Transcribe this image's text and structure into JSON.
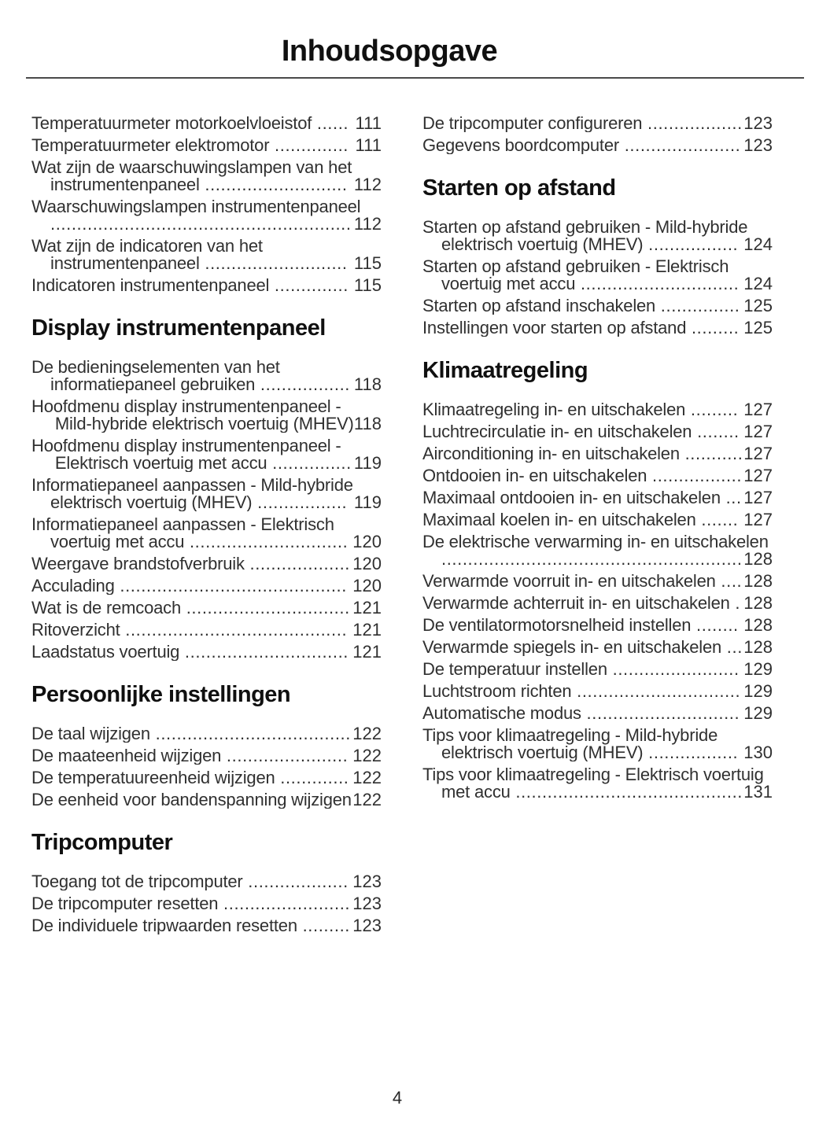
{
  "page": {
    "title": "Inhoudsopgave",
    "page_number": "4"
  },
  "colors": {
    "text": "#303030",
    "heading": "#101010",
    "divider": "#4a4a4a",
    "background": "#ffffff"
  },
  "toc": {
    "left_column": [
      {
        "type": "entry",
        "text": "Temperatuurmeter motorkoelvloeistof",
        "page": "111"
      },
      {
        "type": "entry",
        "text": "Temperatuurmeter elektromotor",
        "page": "111"
      },
      {
        "type": "entry",
        "text": "Wat zijn de waarschuwingslampen van het instrumentenpaneel",
        "page": "112"
      },
      {
        "type": "entry",
        "text": "Waarschuwingslampen instrumentenpaneel",
        "page": "112"
      },
      {
        "type": "entry",
        "text": "Wat zijn de indicatoren van het instrumentenpaneel",
        "page": "115"
      },
      {
        "type": "entry",
        "text": "Indicatoren instrumentenpaneel",
        "page": "115"
      },
      {
        "type": "header",
        "text": "Display instrumentenpaneel"
      },
      {
        "type": "entry",
        "text": "De bedieningselementen van het informatiepaneel gebruiken",
        "page": "118"
      },
      {
        "type": "entry",
        "text": "Hoofdmenu display instrumentenpaneel - Mild-hybride elektrisch voertuig (MHEV)",
        "page": "118"
      },
      {
        "type": "entry",
        "text": "Hoofdmenu display instrumentenpaneel - Elektrisch voertuig met accu",
        "page": "119"
      },
      {
        "type": "entry",
        "text": "Informatiepaneel aanpassen - Mild-hybride elektrisch voertuig (MHEV)",
        "page": "119"
      },
      {
        "type": "entry",
        "text": "Informatiepaneel aanpassen - Elektrisch voertuig met accu",
        "page": "120"
      },
      {
        "type": "entry",
        "text": "Weergave brandstofverbruik",
        "page": "120"
      },
      {
        "type": "entry",
        "text": "Acculading",
        "page": "120"
      },
      {
        "type": "entry",
        "text": "Wat is de remcoach",
        "page": "121"
      },
      {
        "type": "entry",
        "text": "Ritoverzicht",
        "page": "121"
      },
      {
        "type": "entry",
        "text": "Laadstatus voertuig",
        "page": "121"
      },
      {
        "type": "header",
        "text": "Persoonlijke instellingen"
      },
      {
        "type": "entry",
        "text": "De taal wijzigen",
        "page": "122"
      },
      {
        "type": "entry",
        "text": "De maateenheid wijzigen",
        "page": "122"
      },
      {
        "type": "entry",
        "text": "De temperatuureenheid wijzigen",
        "page": "122"
      },
      {
        "type": "entry",
        "text": "De eenheid voor bandenspanning wijzigen",
        "page": "122"
      },
      {
        "type": "header",
        "text": "Tripcomputer"
      },
      {
        "type": "entry",
        "text": "Toegang tot de tripcomputer",
        "page": "123"
      },
      {
        "type": "entry",
        "text": "De tripcomputer resetten",
        "page": "123"
      },
      {
        "type": "entry",
        "text": "De individuele tripwaarden resetten",
        "page": "123"
      }
    ],
    "right_column": [
      {
        "type": "entry",
        "text": "De tripcomputer configureren",
        "page": "123"
      },
      {
        "type": "entry",
        "text": "Gegevens boordcomputer",
        "page": "123"
      },
      {
        "type": "header",
        "text": "Starten op afstand"
      },
      {
        "type": "entry",
        "text": "Starten op afstand gebruiken - Mild-hybride elektrisch voertuig (MHEV)",
        "page": "124"
      },
      {
        "type": "entry",
        "text": "Starten op afstand gebruiken - Elektrisch voertuig met accu",
        "page": "124"
      },
      {
        "type": "entry",
        "text": "Starten op afstand inschakelen",
        "page": "125"
      },
      {
        "type": "entry",
        "text": "Instellingen voor starten op afstand",
        "page": "125"
      },
      {
        "type": "header",
        "text": "Klimaatregeling"
      },
      {
        "type": "entry",
        "text": "Klimaatregeling in- en uitschakelen",
        "page": "127"
      },
      {
        "type": "entry",
        "text": "Luchtrecirculatie in- en uitschakelen",
        "page": "127"
      },
      {
        "type": "entry",
        "text": "Airconditioning in- en uitschakelen",
        "page": "127"
      },
      {
        "type": "entry",
        "text": "Ontdooien in- en uitschakelen",
        "page": "127"
      },
      {
        "type": "entry",
        "text": "Maximaal ontdooien in- en uitschakelen",
        "page": "127"
      },
      {
        "type": "entry",
        "text": "Maximaal koelen in- en uitschakelen",
        "page": "127"
      },
      {
        "type": "entry",
        "text": "De elektrische verwarming in- en uitschakelen",
        "page": "128"
      },
      {
        "type": "entry",
        "text": "Verwarmde voorruit in- en uitschakelen",
        "page": "128"
      },
      {
        "type": "entry",
        "text": "Verwarmde achterruit in- en uitschakelen",
        "page": "128"
      },
      {
        "type": "entry",
        "text": "De ventilatormotorsnelheid instellen",
        "page": "128"
      },
      {
        "type": "entry",
        "text": "Verwarmde spiegels in- en uitschakelen",
        "page": "128"
      },
      {
        "type": "entry",
        "text": "De temperatuur instellen",
        "page": "129"
      },
      {
        "type": "entry",
        "text": "Luchtstroom richten",
        "page": "129"
      },
      {
        "type": "entry",
        "text": "Automatische modus",
        "page": "129"
      },
      {
        "type": "entry",
        "text": "Tips voor klimaatregeling - Mild-hybride elektrisch voertuig (MHEV)",
        "page": "130"
      },
      {
        "type": "entry",
        "text": "Tips voor klimaatregeling - Elektrisch voertuig met accu",
        "page": "131"
      }
    ]
  }
}
